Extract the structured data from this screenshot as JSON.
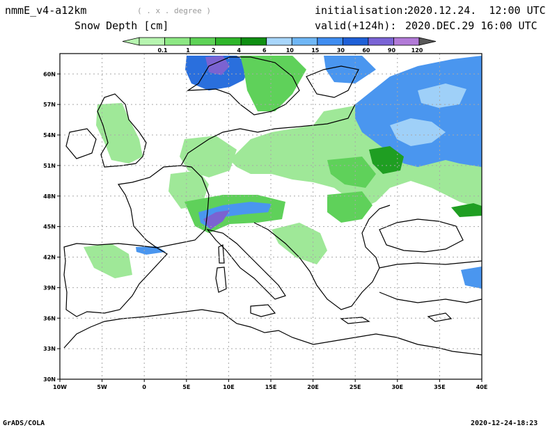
{
  "header": {
    "model": "nmmE_v4-a12km",
    "projection": "( . x . degree )",
    "variable": "Snow Depth [cm]",
    "init_label": "initialisation:",
    "init_value": "2020.12.24.  12:00 UTC",
    "valid_label": "valid(+124h):",
    "valid_value": "2020.DEC.29 16:00 UTC"
  },
  "colorbar": {
    "ticks": [
      "0.1",
      "1",
      "2",
      "4",
      "6",
      "10",
      "15",
      "30",
      "60",
      "90",
      "120"
    ],
    "colors": [
      "#b7f5b0",
      "#8de884",
      "#5ed356",
      "#2fb62a",
      "#0f8f12",
      "#a8d6fb",
      "#6fb7f6",
      "#3f8df1",
      "#1f60d8",
      "#7a64d6",
      "#b27ad8",
      "#585858"
    ]
  },
  "map": {
    "lat_labels": [
      "60N",
      "57N",
      "54N",
      "51N",
      "48N",
      "45N",
      "42N",
      "39N",
      "36N",
      "33N",
      "30N"
    ],
    "lon_labels": [
      "10W",
      "5W",
      "0",
      "5E",
      "10E",
      "15E",
      "20E",
      "25E",
      "30E",
      "35E",
      "40E"
    ],
    "lat_range": [
      30,
      62
    ],
    "lon_range": [
      -10,
      40
    ],
    "snow_colors": {
      "light_green": "#9fe898",
      "green": "#5fd15a",
      "dark_green": "#1f9e22",
      "light_blue": "#9fd0f8",
      "blue": "#4a96ef",
      "dark_blue": "#2a6fdd",
      "purple": "#7b63d1"
    }
  },
  "footer": {
    "left": "GrADS/COLA",
    "right": "2020-12-24-18:23"
  }
}
